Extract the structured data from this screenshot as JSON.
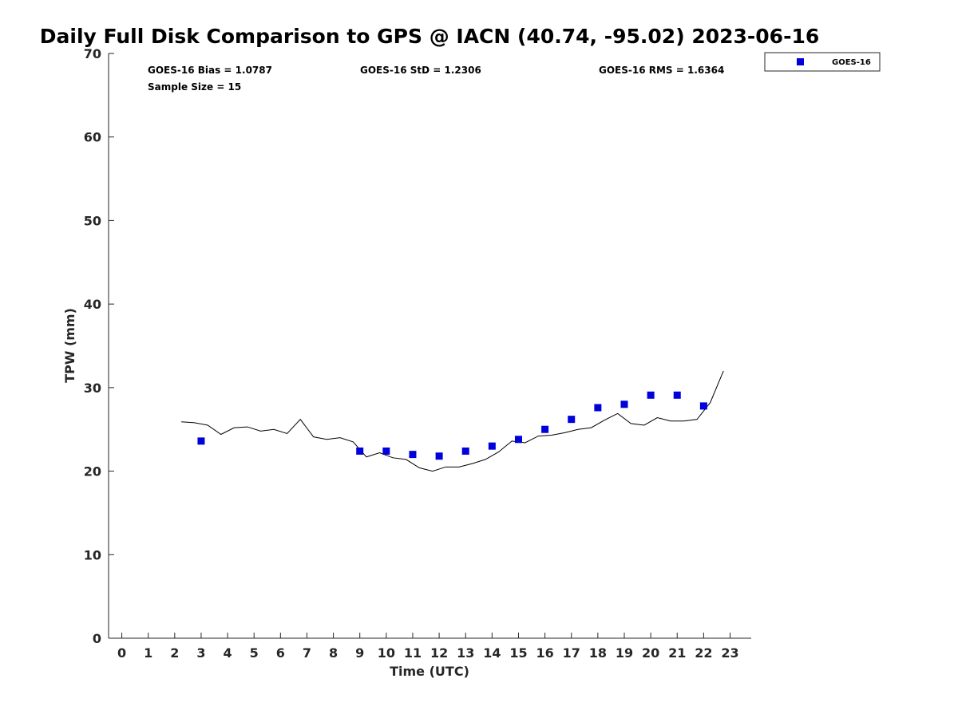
{
  "chart_data": {
    "type": "scatter",
    "title": "Daily Full Disk Comparison to GPS @ IACN (40.74, -95.02) 2023-06-16",
    "xlabel": "Time (UTC)",
    "ylabel": "TPW (mm)",
    "xlim": [
      -0.5,
      23.8
    ],
    "ylim": [
      0,
      70
    ],
    "xticks": [
      "0",
      "1",
      "2",
      "3",
      "4",
      "5",
      "6",
      "7",
      "8",
      "9",
      "10",
      "11",
      "12",
      "13",
      "14",
      "15",
      "16",
      "17",
      "18",
      "19",
      "20",
      "21",
      "22",
      "23"
    ],
    "yticks": [
      "0",
      "10",
      "20",
      "30",
      "40",
      "50",
      "60",
      "70"
    ],
    "grid": false,
    "legend": {
      "position": "top-right-outside",
      "entries": [
        "GOES-16"
      ]
    },
    "stats": {
      "bias": "GOES-16 Bias = 1.0787",
      "std": "GOES-16 StD = 1.2306",
      "rms": "GOES-16 RMS = 1.6364",
      "sample": "Sample Size = 15"
    },
    "series": [
      {
        "name": "GOES-16",
        "style": "square-markers",
        "color": "#0000dd",
        "x": [
          3,
          9,
          10,
          11,
          12,
          13,
          14,
          15,
          16,
          17,
          18,
          19,
          20,
          21,
          22
        ],
        "y": [
          23.6,
          22.4,
          22.4,
          22.0,
          21.8,
          22.4,
          23.0,
          23.8,
          25.0,
          26.2,
          27.6,
          28.0,
          29.1,
          29.1,
          27.8
        ]
      },
      {
        "style": "line",
        "color": "#000000",
        "x": [
          2.25,
          2.75,
          3.25,
          3.75,
          4.25,
          4.75,
          5.25,
          5.75,
          6.25,
          6.75,
          7.25,
          7.75,
          8.25,
          8.75,
          9.25,
          9.75,
          10.25,
          10.75,
          11.25,
          11.75,
          12.25,
          12.75,
          13.25,
          13.75,
          14.25,
          14.75,
          15.25,
          15.75,
          16.25,
          16.75,
          17.25,
          17.75,
          18.25,
          18.75,
          19.25,
          19.75,
          20.25,
          20.75,
          21.25,
          21.75,
          22.25,
          22.75
        ],
        "y": [
          25.9,
          25.8,
          25.5,
          24.4,
          25.2,
          25.3,
          24.8,
          25.0,
          24.5,
          26.2,
          24.1,
          23.8,
          24.0,
          23.5,
          21.7,
          22.2,
          21.6,
          21.4,
          20.4,
          20.0,
          20.5,
          20.5,
          20.9,
          21.4,
          22.3,
          23.6,
          23.4,
          24.2,
          24.3,
          24.6,
          25.0,
          25.2,
          26.1,
          26.9,
          25.7,
          25.5,
          26.4,
          26.0,
          26.0,
          26.2,
          28.2,
          32.0
        ]
      }
    ]
  }
}
